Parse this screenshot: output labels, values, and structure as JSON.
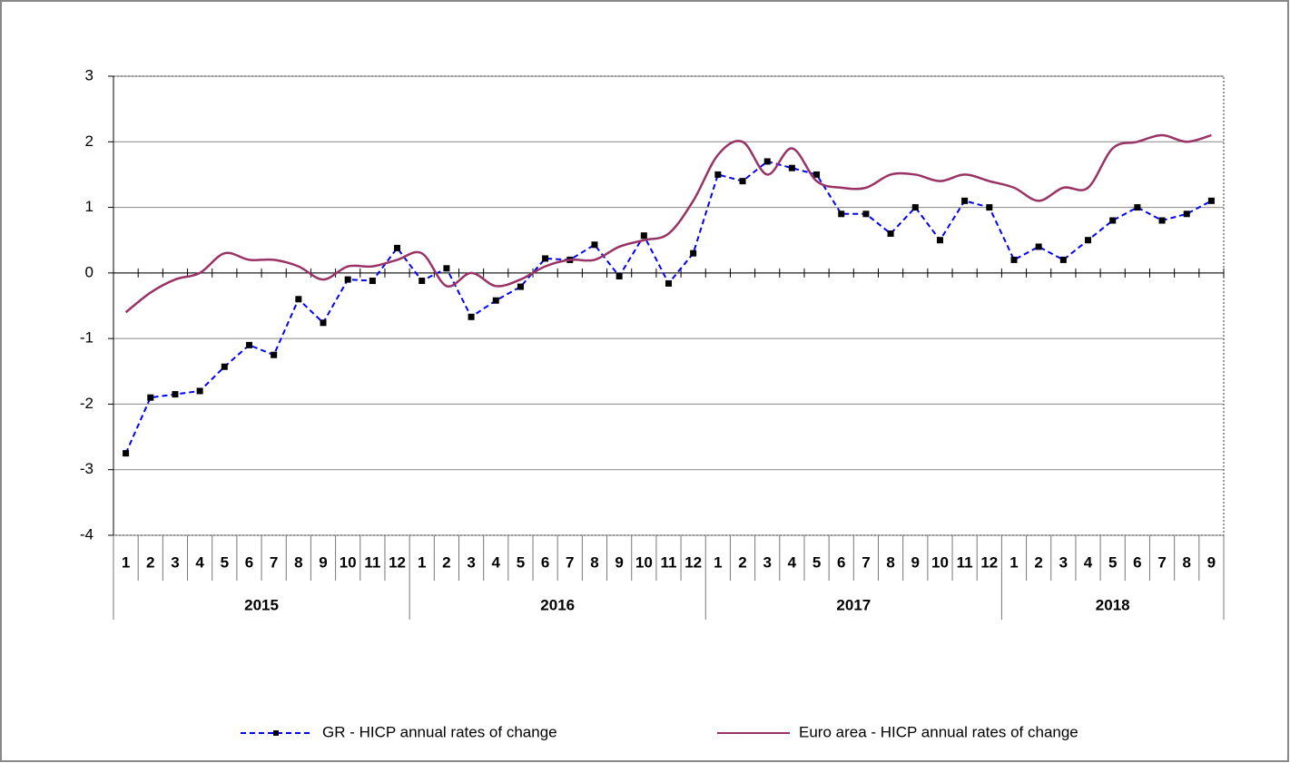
{
  "chart_data": {
    "type": "line",
    "groups": [
      {
        "name": "2015",
        "categories": [
          "1",
          "2",
          "3",
          "4",
          "5",
          "6",
          "7",
          "8",
          "9",
          "10",
          "11",
          "12"
        ]
      },
      {
        "name": "2016",
        "categories": [
          "1",
          "2",
          "3",
          "4",
          "5",
          "6",
          "7",
          "8",
          "9",
          "10",
          "11",
          "12"
        ]
      },
      {
        "name": "2017",
        "categories": [
          "1",
          "2",
          "3",
          "4",
          "5",
          "6",
          "7",
          "8",
          "9",
          "10",
          "11",
          "12"
        ]
      },
      {
        "name": "2018",
        "categories": [
          "1",
          "2",
          "3",
          "4",
          "5",
          "6",
          "7",
          "8",
          "9"
        ]
      }
    ],
    "series": [
      {
        "name": "GR - HICP annual rates of change",
        "color": "#0000ff",
        "dashed": true,
        "markers": true,
        "values": [
          -2.75,
          -1.9,
          -1.85,
          -1.8,
          -1.43,
          -1.1,
          -1.25,
          -0.4,
          -0.76,
          -0.1,
          -0.12,
          0.38,
          -0.12,
          0.07,
          -0.67,
          -0.42,
          -0.21,
          0.22,
          0.2,
          0.43,
          -0.05,
          0.57,
          -0.16,
          0.3,
          1.5,
          1.4,
          1.7,
          1.6,
          1.5,
          0.9,
          0.9,
          0.6,
          1.0,
          0.5,
          1.1,
          1.0,
          0.2,
          0.4,
          0.2,
          0.5,
          0.8,
          1.0,
          0.8,
          0.9,
          1.1
        ]
      },
      {
        "name": "Euro area - HICP annual rates of change",
        "color": "#993366",
        "dashed": false,
        "markers": false,
        "smooth": true,
        "values": [
          -0.6,
          -0.3,
          -0.1,
          0.0,
          0.3,
          0.2,
          0.2,
          0.1,
          -0.1,
          0.1,
          0.1,
          0.2,
          0.3,
          -0.2,
          0.0,
          -0.2,
          -0.1,
          0.1,
          0.2,
          0.2,
          0.4,
          0.5,
          0.6,
          1.1,
          1.8,
          2.0,
          1.5,
          1.9,
          1.4,
          1.3,
          1.3,
          1.5,
          1.5,
          1.4,
          1.5,
          1.4,
          1.3,
          1.1,
          1.3,
          1.3,
          1.9,
          2.0,
          2.1,
          2.0,
          2.1
        ]
      }
    ],
    "ylim": [
      -4,
      3
    ],
    "yticks": [
      -4,
      -3,
      -2,
      -1,
      0,
      1,
      2,
      3
    ],
    "grid": true,
    "legend": "bottom"
  }
}
